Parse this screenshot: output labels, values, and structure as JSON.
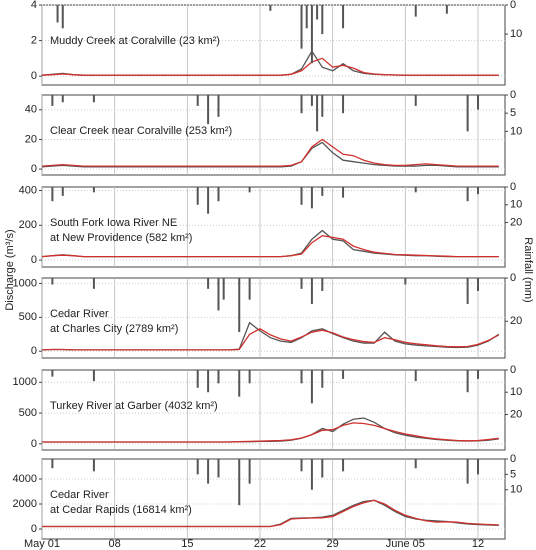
{
  "axes": {
    "ylabel": "Discharge (m³/s)",
    "y2label": "Rainfall (mm)",
    "xlim": [
      0,
      44.6
    ],
    "xticks": [
      {
        "value": 0,
        "label": "May 01"
      },
      {
        "value": 7,
        "label": "08"
      },
      {
        "value": 14,
        "label": "15"
      },
      {
        "value": 21,
        "label": "22"
      },
      {
        "value": 28,
        "label": "29"
      },
      {
        "value": 35,
        "label": "June 05"
      },
      {
        "value": 42,
        "label": "12"
      }
    ]
  },
  "chart_data": [
    {
      "type": "line",
      "title": [
        "Muddy Creek at Coralville (23 km²)"
      ],
      "ylim": [
        -0.5,
        4
      ],
      "yticks": [
        0,
        2,
        4
      ],
      "y2lim": [
        0,
        27.5
      ],
      "y2ticks": [
        0,
        10
      ],
      "grid": true,
      "x": [
        0,
        1,
        2,
        3,
        4,
        5,
        6,
        7,
        8,
        9,
        10,
        11,
        12,
        13,
        14,
        15,
        16,
        17,
        18,
        19,
        20,
        21,
        22,
        23,
        24,
        25,
        26,
        27,
        28,
        29,
        30,
        31,
        32,
        33,
        34,
        35,
        36,
        37,
        38,
        39,
        40,
        41,
        42,
        43,
        44
      ],
      "series": [
        {
          "color": "#555555",
          "values": [
            0.05,
            0.1,
            0.15,
            0.08,
            0.05,
            0.05,
            0.05,
            0.05,
            0.05,
            0.05,
            0.05,
            0.05,
            0.05,
            0.05,
            0.05,
            0.05,
            0.05,
            0.05,
            0.05,
            0.05,
            0.05,
            0.05,
            0.05,
            0.05,
            0.1,
            0.4,
            1.4,
            0.5,
            0.3,
            0.7,
            0.3,
            0.15,
            0.1,
            0.08,
            0.06,
            0.05,
            0.05,
            0.05,
            0.05,
            0.05,
            0.05,
            0.05,
            0.05,
            0.05,
            0.05
          ]
        },
        {
          "color": "#d0312d",
          "values": [
            0.05,
            0.08,
            0.12,
            0.08,
            0.05,
            0.05,
            0.05,
            0.05,
            0.05,
            0.05,
            0.05,
            0.05,
            0.05,
            0.05,
            0.05,
            0.05,
            0.05,
            0.05,
            0.05,
            0.05,
            0.05,
            0.05,
            0.05,
            0.05,
            0.1,
            0.3,
            0.8,
            1.0,
            0.5,
            0.6,
            0.45,
            0.2,
            0.12,
            0.08,
            0.06,
            0.05,
            0.05,
            0.05,
            0.05,
            0.05,
            0.05,
            0.05,
            0.05,
            0.05,
            0.05
          ]
        },
        {
          "color": "#555555",
          "axis": "y2",
          "x": [
            1.5,
            2,
            22,
            25,
            25.5,
            26,
            26.5,
            27,
            29,
            36,
            39
          ],
          "values": [
            6,
            8,
            2,
            15,
            8,
            20,
            5,
            10,
            8,
            4,
            3
          ]
        }
      ]
    },
    {
      "type": "line",
      "title": [
        "Clear Creek near Coralville (253 km²)"
      ],
      "ylim": [
        -4,
        50
      ],
      "yticks": [
        0,
        20,
        40
      ],
      "y2lim": [
        0,
        22
      ],
      "y2ticks": [
        0,
        5,
        10
      ],
      "grid": true,
      "x": [
        0,
        1,
        2,
        3,
        4,
        5,
        6,
        7,
        8,
        9,
        10,
        11,
        12,
        13,
        14,
        15,
        16,
        17,
        18,
        19,
        20,
        21,
        22,
        23,
        24,
        25,
        26,
        27,
        28,
        29,
        30,
        31,
        32,
        33,
        34,
        35,
        36,
        37,
        38,
        39,
        40,
        41,
        42,
        43,
        44
      ],
      "series": [
        {
          "color": "#555555",
          "values": [
            1.5,
            2,
            2.5,
            2,
            1.5,
            1.5,
            1.5,
            1.5,
            1.5,
            1.5,
            1.5,
            1.5,
            1.5,
            1.5,
            1.5,
            1.5,
            1.5,
            1.5,
            1.5,
            1.5,
            1.5,
            1.5,
            1.5,
            1.5,
            2,
            5,
            14,
            18,
            11,
            6,
            5,
            4,
            3,
            2.5,
            2,
            2,
            2,
            2.5,
            2.5,
            2,
            1.5,
            1.5,
            1.5,
            1.5,
            1.5
          ]
        },
        {
          "color": "#d0312d",
          "values": [
            2,
            2.5,
            3,
            2.5,
            2,
            2,
            2,
            2,
            2,
            2,
            2,
            2,
            2,
            2,
            2,
            2,
            2,
            2,
            2,
            2,
            2,
            2,
            2,
            2,
            2.5,
            5,
            15,
            20,
            15,
            10,
            9,
            6,
            4,
            3,
            2.5,
            2.5,
            3,
            3.5,
            3,
            2.5,
            2,
            2,
            2,
            2,
            2
          ]
        },
        {
          "color": "#555555",
          "axis": "y2",
          "x": [
            1,
            2,
            5,
            15,
            16,
            17,
            25,
            26,
            26.5,
            27,
            29,
            36,
            41,
            42
          ],
          "values": [
            3,
            2,
            2,
            3,
            8,
            6,
            5,
            3,
            10,
            6,
            5,
            3,
            10,
            4
          ]
        }
      ]
    },
    {
      "type": "line",
      "title": [
        "South Fork Iowa River NE",
        "at New Providence (582 km²)"
      ],
      "ylim": [
        -40,
        420
      ],
      "yticks": [
        0,
        200,
        400
      ],
      "y2lim": [
        0,
        45
      ],
      "y2ticks": [
        0,
        10,
        20
      ],
      "grid": true,
      "x": [
        0,
        1,
        2,
        3,
        4,
        5,
        6,
        7,
        8,
        9,
        10,
        11,
        12,
        13,
        14,
        15,
        16,
        17,
        18,
        19,
        20,
        21,
        22,
        23,
        24,
        25,
        26,
        27,
        28,
        29,
        30,
        31,
        32,
        33,
        34,
        35,
        36,
        37,
        38,
        39,
        40,
        41,
        42,
        43,
        44
      ],
      "series": [
        {
          "color": "#555555",
          "values": [
            20,
            25,
            30,
            25,
            20,
            20,
            20,
            20,
            20,
            20,
            20,
            20,
            20,
            20,
            20,
            20,
            20,
            20,
            20,
            20,
            20,
            20,
            20,
            20,
            25,
            40,
            120,
            170,
            120,
            110,
            60,
            50,
            40,
            35,
            30,
            28,
            25,
            25,
            22,
            20,
            20,
            20,
            20,
            20,
            20
          ]
        },
        {
          "color": "#d0312d",
          "values": [
            20,
            25,
            28,
            25,
            20,
            20,
            20,
            20,
            20,
            20,
            20,
            20,
            20,
            20,
            20,
            20,
            20,
            20,
            20,
            20,
            20,
            20,
            20,
            20,
            25,
            35,
            100,
            140,
            130,
            120,
            80,
            60,
            45,
            38,
            32,
            30,
            28,
            26,
            24,
            22,
            20,
            20,
            20,
            20,
            20
          ]
        },
        {
          "color": "#555555",
          "axis": "y2",
          "x": [
            1,
            2,
            5,
            15,
            16,
            17,
            20,
            25,
            26,
            27,
            29,
            36,
            41,
            42
          ],
          "values": [
            8,
            5,
            3,
            10,
            15,
            8,
            3,
            10,
            12,
            5,
            6,
            3,
            8,
            4
          ]
        }
      ]
    },
    {
      "type": "line",
      "title": [
        "Cedar River",
        "at Charles City (2789 km²)"
      ],
      "ylim": [
        -100,
        1080
      ],
      "yticks": [
        0,
        500,
        1000
      ],
      "y2lim": [
        0,
        37
      ],
      "y2ticks": [
        0,
        20
      ],
      "grid": true,
      "x": [
        0,
        1,
        2,
        3,
        4,
        5,
        6,
        7,
        8,
        9,
        10,
        11,
        12,
        13,
        14,
        15,
        16,
        17,
        18,
        19,
        20,
        21,
        22,
        23,
        24,
        25,
        26,
        27,
        28,
        29,
        30,
        31,
        32,
        33,
        34,
        35,
        36,
        37,
        38,
        39,
        40,
        41,
        42,
        43,
        44
      ],
      "series": [
        {
          "color": "#555555",
          "values": [
            20,
            25,
            25,
            20,
            20,
            20,
            20,
            20,
            20,
            20,
            20,
            20,
            20,
            20,
            20,
            20,
            20,
            20,
            20,
            30,
            420,
            300,
            200,
            150,
            130,
            200,
            300,
            330,
            260,
            200,
            150,
            120,
            120,
            280,
            150,
            110,
            90,
            80,
            70,
            60,
            55,
            60,
            90,
            150,
            250
          ]
        },
        {
          "color": "#d0312d",
          "values": [
            20,
            25,
            25,
            20,
            20,
            20,
            20,
            20,
            20,
            20,
            20,
            20,
            20,
            20,
            20,
            20,
            20,
            20,
            20,
            25,
            250,
            330,
            240,
            180,
            150,
            210,
            280,
            310,
            270,
            210,
            170,
            140,
            130,
            200,
            170,
            130,
            110,
            95,
            80,
            70,
            65,
            70,
            100,
            160,
            240
          ]
        },
        {
          "color": "#555555",
          "axis": "y2",
          "x": [
            1,
            5,
            16,
            17,
            17.5,
            19,
            20,
            25,
            26,
            27,
            35,
            41,
            42
          ],
          "values": [
            3,
            5,
            5,
            15,
            10,
            25,
            10,
            5,
            12,
            6,
            3,
            12,
            6
          ]
        }
      ]
    },
    {
      "type": "line",
      "title": [
        "Turkey River at Garber (4032 km²)"
      ],
      "ylim": [
        -100,
        1200
      ],
      "yticks": [
        0,
        500,
        1000
      ],
      "y2lim": [
        0,
        36
      ],
      "y2ticks": [
        0,
        10,
        20
      ],
      "grid": true,
      "x": [
        0,
        1,
        2,
        3,
        4,
        5,
        6,
        7,
        8,
        9,
        10,
        11,
        12,
        13,
        14,
        15,
        16,
        17,
        18,
        19,
        20,
        21,
        22,
        23,
        24,
        25,
        26,
        27,
        28,
        29,
        30,
        31,
        32,
        33,
        34,
        35,
        36,
        37,
        38,
        39,
        40,
        41,
        42,
        43,
        44
      ],
      "series": [
        {
          "color": "#555555",
          "values": [
            30,
            30,
            30,
            30,
            30,
            30,
            30,
            30,
            30,
            30,
            30,
            30,
            30,
            30,
            30,
            30,
            30,
            30,
            30,
            35,
            35,
            40,
            40,
            45,
            60,
            90,
            150,
            250,
            200,
            320,
            400,
            420,
            350,
            250,
            180,
            140,
            110,
            90,
            70,
            60,
            50,
            45,
            50,
            60,
            80
          ]
        },
        {
          "color": "#d0312d",
          "values": [
            30,
            30,
            30,
            30,
            30,
            30,
            30,
            30,
            30,
            30,
            30,
            30,
            30,
            30,
            30,
            30,
            30,
            30,
            30,
            35,
            40,
            45,
            50,
            55,
            65,
            95,
            150,
            220,
            230,
            300,
            340,
            330,
            300,
            250,
            200,
            160,
            130,
            100,
            80,
            65,
            55,
            50,
            55,
            70,
            90
          ]
        },
        {
          "color": "#555555",
          "axis": "y2",
          "x": [
            1,
            5,
            15,
            16,
            17,
            19,
            20,
            25,
            26,
            27,
            29,
            36,
            41,
            42
          ],
          "values": [
            3,
            5,
            8,
            10,
            6,
            12,
            6,
            6,
            15,
            8,
            4,
            5,
            10,
            4
          ]
        }
      ]
    },
    {
      "type": "line",
      "title": [
        "Cedar River",
        "at Cedar Rapids (16814 km²)"
      ],
      "ylim": [
        -800,
        5600
      ],
      "yticks": [
        0,
        2000,
        4000
      ],
      "y2lim": [
        0,
        26
      ],
      "y2ticks": [
        0,
        5,
        10
      ],
      "grid": true,
      "x": [
        0,
        1,
        2,
        3,
        4,
        5,
        6,
        7,
        8,
        9,
        10,
        11,
        12,
        13,
        14,
        15,
        16,
        17,
        18,
        19,
        20,
        21,
        22,
        23,
        24,
        25,
        26,
        27,
        28,
        29,
        30,
        31,
        32,
        33,
        34,
        35,
        36,
        37,
        38,
        39,
        40,
        41,
        42,
        43,
        44
      ],
      "series": [
        {
          "color": "#555555",
          "values": [
            200,
            200,
            200,
            200,
            200,
            200,
            200,
            200,
            200,
            200,
            200,
            200,
            200,
            200,
            200,
            200,
            200,
            200,
            200,
            200,
            200,
            200,
            200,
            400,
            850,
            880,
            900,
            950,
            1100,
            1500,
            1900,
            2200,
            2300,
            1900,
            1400,
            1000,
            800,
            700,
            650,
            600,
            500,
            400,
            350,
            320,
            300
          ]
        },
        {
          "color": "#d0312d",
          "values": [
            200,
            200,
            200,
            200,
            200,
            200,
            200,
            200,
            200,
            200,
            200,
            200,
            200,
            200,
            200,
            200,
            200,
            200,
            200,
            200,
            200,
            200,
            200,
            350,
            800,
            850,
            880,
            900,
            1000,
            1400,
            1800,
            2100,
            2300,
            2000,
            1500,
            1100,
            850,
            650,
            550,
            580,
            550,
            450,
            400,
            360,
            330
          ]
        },
        {
          "color": "#555555",
          "axis": "y2",
          "x": [
            1,
            5,
            15,
            16,
            17,
            19,
            20,
            25,
            26,
            27,
            29,
            36,
            41,
            42
          ],
          "values": [
            3,
            4,
            5,
            8,
            6,
            15,
            8,
            4,
            10,
            6,
            4,
            3,
            8,
            5
          ]
        }
      ]
    }
  ]
}
